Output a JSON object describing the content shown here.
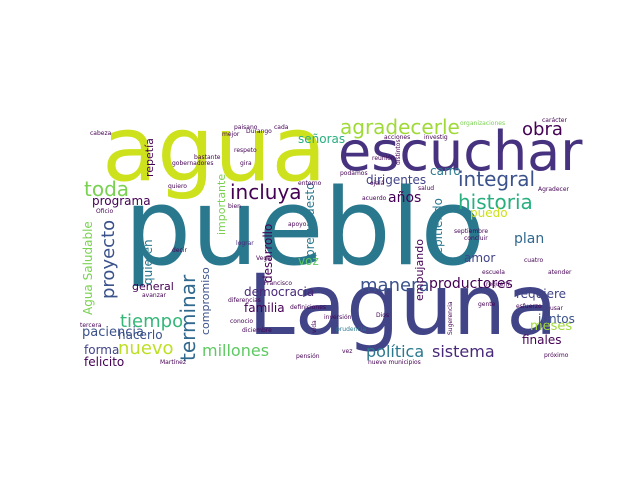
{
  "words": [
    {
      "text": "pueblo",
      "color": "#2a788e"
    },
    {
      "text": "agua",
      "color": "#cde11d"
    },
    {
      "text": "Laguna",
      "color": "#414487"
    },
    {
      "text": "escuchar",
      "color": "#46327e"
    },
    {
      "text": "agradecerle",
      "color": "#a0da39"
    },
    {
      "text": "integral",
      "color": "#3b528b"
    },
    {
      "text": "historia",
      "color": "#29af7f"
    },
    {
      "text": "incluya",
      "color": "#440154"
    },
    {
      "text": "toda",
      "color": "#7ad151"
    },
    {
      "text": "obra",
      "color": "#440154"
    },
    {
      "text": "manera",
      "color": "#3b528b"
    },
    {
      "text": "productores",
      "color": "#440154"
    },
    {
      "text": "política",
      "color": "#2a788e"
    },
    {
      "text": "sistema",
      "color": "#482878"
    },
    {
      "text": "millones",
      "color": "#5ec962"
    },
    {
      "text": "nuevo",
      "color": "#bddf26"
    },
    {
      "text": "tiempo",
      "color": "#35b779"
    },
    {
      "text": "proyecto",
      "color": "#3b528b"
    },
    {
      "text": "terminar",
      "color": "#31688e"
    },
    {
      "text": "años",
      "color": "#440154"
    },
    {
      "text": "dirigentes",
      "color": "#414487"
    },
    {
      "text": "señoras",
      "color": "#29af7f"
    },
    {
      "text": "democracia",
      "color": "#482878"
    },
    {
      "text": "familia",
      "color": "#440154"
    },
    {
      "text": "plan",
      "color": "#31688e"
    },
    {
      "text": "meses",
      "color": "#a0da39"
    },
    {
      "text": "requiere",
      "color": "#414487"
    },
    {
      "text": "paciencia",
      "color": "#3b528b"
    },
    {
      "text": "programa",
      "color": "#440154"
    },
    {
      "text": "hacerlo",
      "color": "#3b528b"
    },
    {
      "text": "general",
      "color": "#440154"
    },
    {
      "text": "juntos",
      "color": "#3b528b"
    },
    {
      "text": "finales",
      "color": "#440154"
    },
    {
      "text": "forma",
      "color": "#414487"
    },
    {
      "text": "felicito",
      "color": "#440154"
    },
    {
      "text": "carro",
      "color": "#2a788e"
    },
    {
      "text": "puedo",
      "color": "#cde11d"
    },
    {
      "text": "amor",
      "color": "#414487"
    },
    {
      "text": "voz",
      "color": "#5ec962"
    },
    {
      "text": "Agua Saludable",
      "color": "#7ad151"
    },
    {
      "text": "quieren",
      "color": "#2a788e"
    },
    {
      "text": "desarrollo",
      "color": "#440154"
    },
    {
      "text": "presupuesto",
      "color": "#2a788e"
    },
    {
      "text": "repitiendo",
      "color": "#2a788e"
    },
    {
      "text": "empujando",
      "color": "#440154"
    },
    {
      "text": "repetía",
      "color": "#440154"
    },
    {
      "text": "compromiso",
      "color": "#3b528b"
    },
    {
      "text": "importante",
      "color": "#7ad151"
    },
    {
      "text": "lograr",
      "color": "#482878"
    },
    {
      "text": "septiembre",
      "color": "#440154"
    },
    {
      "text": "concluir",
      "color": "#440154"
    },
    {
      "text": "Agradecer",
      "color": "#440154"
    },
    {
      "text": "apoyo",
      "color": "#440154"
    },
    {
      "text": "decir",
      "color": "#440154"
    },
    {
      "text": "carácter",
      "color": "#440154"
    },
    {
      "text": "cabeza",
      "color": "#440154"
    },
    {
      "text": "paisano",
      "color": "#440154"
    },
    {
      "text": "respeto",
      "color": "#440154"
    },
    {
      "text": "bastante",
      "color": "#440154"
    },
    {
      "text": "gobernadores",
      "color": "#440154"
    },
    {
      "text": "reunión",
      "color": "#440154"
    },
    {
      "text": "podamos",
      "color": "#440154"
    },
    {
      "text": "acuerdo",
      "color": "#440154"
    },
    {
      "text": "quiero",
      "color": "#440154"
    },
    {
      "text": "ojalá",
      "color": "#440154"
    },
    {
      "text": "bien",
      "color": "#440154"
    },
    {
      "text": "Oficio",
      "color": "#440154"
    },
    {
      "text": "avanzar",
      "color": "#440154"
    },
    {
      "text": "diferencias",
      "color": "#440154"
    },
    {
      "text": "definiciones",
      "color": "#440154"
    },
    {
      "text": "inversión",
      "color": "#440154"
    },
    {
      "text": "diciembre",
      "color": "#440154"
    },
    {
      "text": "tercera",
      "color": "#440154"
    },
    {
      "text": "Martínez",
      "color": "#440154"
    },
    {
      "text": "pensión",
      "color": "#440154"
    },
    {
      "text": "nueve municipios",
      "color": "#440154"
    },
    {
      "text": "escuela",
      "color": "#440154"
    },
    {
      "text": "cuatro",
      "color": "#440154"
    },
    {
      "text": "atender",
      "color": "#440154"
    },
    {
      "text": "esfuerzo",
      "color": "#440154"
    },
    {
      "text": "usar",
      "color": "#440154"
    },
    {
      "text": "próximo",
      "color": "#440154"
    },
    {
      "text": "acciones",
      "color": "#440154"
    },
    {
      "text": "organizaciones",
      "color": "#7ad151"
    },
    {
      "text": "Vega",
      "color": "#440154"
    },
    {
      "text": "Francisco",
      "color": "#440154"
    },
    {
      "text": "cada",
      "color": "#440154"
    },
    {
      "text": "Durango",
      "color": "#440154"
    },
    {
      "text": "mejor",
      "color": "#440154"
    },
    {
      "text": "salud",
      "color": "#440154"
    },
    {
      "text": "gente",
      "color": "#440154"
    },
    {
      "text": "requerir",
      "color": "#440154"
    },
    {
      "text": "gira",
      "color": "#440154"
    },
    {
      "text": "prudencia",
      "color": "#2a788e"
    },
    {
      "text": "vez",
      "color": "#440154"
    },
    {
      "text": "vida",
      "color": "#440154"
    },
    {
      "text": "conocio",
      "color": "#440154"
    },
    {
      "text": "Sugerencia",
      "color": "#440154"
    },
    {
      "text": "Dios",
      "color": "#440154"
    },
    {
      "text": "investig",
      "color": "#440154"
    },
    {
      "text": "distintos",
      "color": "#440154"
    },
    {
      "text": "entorno",
      "color": "#440154"
    }
  ]
}
